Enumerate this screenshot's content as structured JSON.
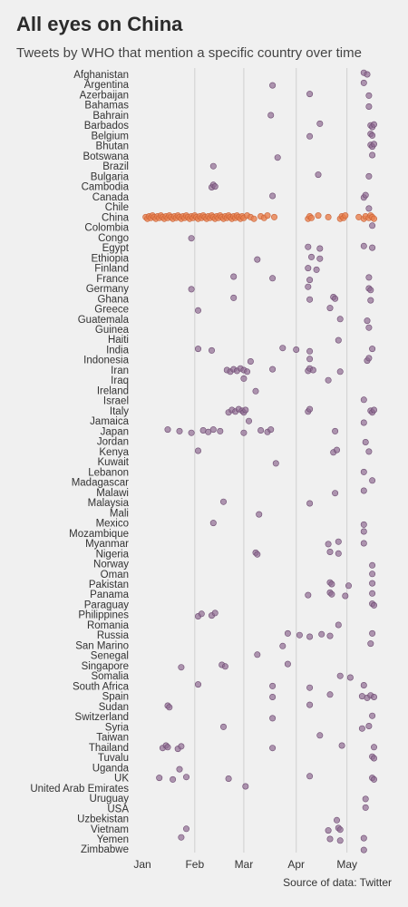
{
  "title": "All eyes on China",
  "subtitle": "Tweets by WHO that mention a specific country over time",
  "source": "Source of data: Twitter",
  "colors": {
    "background": "#f0f0f0",
    "highlight": "#e8804e",
    "default": "#8e6b91",
    "grid": "#d0d0d0"
  },
  "chart_data": {
    "type": "scatter",
    "highlight_country": "China",
    "x_axis_ticks": [
      {
        "label": "Jan",
        "day": 0
      },
      {
        "label": "Feb",
        "day": 31
      },
      {
        "label": "Mar",
        "day": 60
      },
      {
        "label": "Apr",
        "day": 91
      },
      {
        "label": "May",
        "day": 121
      }
    ],
    "xlim_days": [
      0,
      140
    ],
    "grid": "vertical",
    "countries": [
      {
        "name": "Afghanistan",
        "days": [
          131,
          133
        ]
      },
      {
        "name": "Argentina",
        "days": [
          77,
          131
        ]
      },
      {
        "name": "Azerbaijan",
        "days": [
          99,
          134
        ]
      },
      {
        "name": "Bahamas",
        "days": [
          134
        ]
      },
      {
        "name": "Bahrain",
        "days": [
          76
        ]
      },
      {
        "name": "Barbados",
        "days": [
          105,
          135,
          136,
          137
        ]
      },
      {
        "name": "Belgium",
        "days": [
          99,
          135,
          136
        ]
      },
      {
        "name": "Bhutan",
        "days": [
          135,
          136,
          137
        ]
      },
      {
        "name": "Botswana",
        "days": [
          80,
          136
        ]
      },
      {
        "name": "Brazil",
        "days": [
          42
        ]
      },
      {
        "name": "Bulgaria",
        "days": [
          104,
          134
        ]
      },
      {
        "name": "Cambodia",
        "days": [
          41,
          42,
          43
        ]
      },
      {
        "name": "Canada",
        "days": [
          77,
          131,
          132
        ]
      },
      {
        "name": "Chile",
        "days": [
          134
        ]
      },
      {
        "name": "China",
        "days": [
          2,
          3,
          4,
          5,
          6,
          7,
          8,
          9,
          10,
          11,
          12,
          13,
          14,
          15,
          16,
          17,
          18,
          19,
          20,
          21,
          22,
          23,
          24,
          25,
          26,
          27,
          28,
          29,
          30,
          31,
          32,
          33,
          34,
          35,
          36,
          37,
          38,
          39,
          40,
          41,
          42,
          43,
          44,
          45,
          46,
          47,
          48,
          49,
          50,
          51,
          52,
          53,
          54,
          55,
          56,
          57,
          58,
          59,
          60,
          62,
          64,
          66,
          70,
          72,
          74,
          78,
          98,
          99,
          100,
          104,
          110,
          117,
          118,
          119,
          120,
          128,
          131,
          132,
          134,
          135,
          136,
          137
        ]
      },
      {
        "name": "Colombia",
        "days": [
          136
        ]
      },
      {
        "name": "Congo",
        "days": [
          29
        ]
      },
      {
        "name": "Egypt",
        "days": [
          98,
          105,
          131,
          136
        ]
      },
      {
        "name": "Ethiopia",
        "days": [
          68,
          100,
          105
        ]
      },
      {
        "name": "Finland",
        "days": [
          98,
          103
        ]
      },
      {
        "name": "France",
        "days": [
          54,
          77,
          99,
          134
        ]
      },
      {
        "name": "Germany",
        "days": [
          29,
          98,
          134,
          135
        ]
      },
      {
        "name": "Ghana",
        "days": [
          54,
          99,
          113,
          114,
          135
        ]
      },
      {
        "name": "Greece",
        "days": [
          33,
          111
        ]
      },
      {
        "name": "Guatemala",
        "days": [
          117,
          133
        ]
      },
      {
        "name": "Guinea",
        "days": [
          134
        ]
      },
      {
        "name": "Haiti",
        "days": [
          116
        ]
      },
      {
        "name": "India",
        "days": [
          33,
          41,
          83,
          91,
          99,
          136
        ]
      },
      {
        "name": "Indonesia",
        "days": [
          64,
          99,
          133,
          134
        ]
      },
      {
        "name": "Iran",
        "days": [
          50,
          52,
          54,
          56,
          58,
          60,
          62,
          77,
          98,
          99,
          101,
          117
        ]
      },
      {
        "name": "Iraq",
        "days": [
          60,
          110
        ]
      },
      {
        "name": "Ireland",
        "days": [
          67
        ]
      },
      {
        "name": "Israel",
        "days": [
          131
        ]
      },
      {
        "name": "Italy",
        "days": [
          51,
          53,
          55,
          57,
          59,
          60,
          61,
          98,
          99,
          135,
          136,
          137
        ]
      },
      {
        "name": "Jamaica",
        "days": [
          63,
          131
        ]
      },
      {
        "name": "Japan",
        "days": [
          15,
          22,
          29,
          36,
          39,
          42,
          46,
          60,
          70,
          74,
          76,
          114
        ]
      },
      {
        "name": "Jordan",
        "days": [
          132
        ]
      },
      {
        "name": "Kenya",
        "days": [
          33,
          113,
          115,
          134
        ]
      },
      {
        "name": "Kuwait",
        "days": [
          79
        ]
      },
      {
        "name": "Lebanon",
        "days": [
          131
        ]
      },
      {
        "name": "Madagascar",
        "days": [
          136
        ]
      },
      {
        "name": "Malawi",
        "days": [
          114,
          131
        ]
      },
      {
        "name": "Malaysia",
        "days": [
          48,
          99
        ]
      },
      {
        "name": "Mali",
        "days": [
          69
        ]
      },
      {
        "name": "Mexico",
        "days": [
          42,
          131
        ]
      },
      {
        "name": "Mozambique",
        "days": [
          131
        ]
      },
      {
        "name": "Myanmar",
        "days": [
          110,
          116,
          131
        ]
      },
      {
        "name": "Nigeria",
        "days": [
          67,
          68,
          111,
          116
        ]
      },
      {
        "name": "Norway",
        "days": [
          136
        ]
      },
      {
        "name": "Oman",
        "days": [
          136
        ]
      },
      {
        "name": "Pakistan",
        "days": [
          111,
          112,
          122,
          136
        ]
      },
      {
        "name": "Panama",
        "days": [
          98,
          111,
          112,
          120,
          136
        ]
      },
      {
        "name": "Paraguay",
        "days": [
          136,
          137
        ]
      },
      {
        "name": "Philippines",
        "days": [
          33,
          35,
          41,
          43
        ]
      },
      {
        "name": "Romania",
        "days": [
          116
        ]
      },
      {
        "name": "Russia",
        "days": [
          86,
          93,
          99,
          106,
          111,
          136
        ]
      },
      {
        "name": "San Marino",
        "days": [
          83,
          135
        ]
      },
      {
        "name": "Senegal",
        "days": [
          68
        ]
      },
      {
        "name": "Singapore",
        "days": [
          23,
          47,
          49,
          86
        ]
      },
      {
        "name": "Somalia",
        "days": [
          117,
          123
        ]
      },
      {
        "name": "South Africa",
        "days": [
          33,
          77,
          99,
          131
        ]
      },
      {
        "name": "Spain",
        "days": [
          77,
          111,
          130,
          133,
          135,
          137
        ]
      },
      {
        "name": "Sudan",
        "days": [
          15,
          16,
          99
        ]
      },
      {
        "name": "Switzerland",
        "days": [
          77,
          136
        ]
      },
      {
        "name": "Syria",
        "days": [
          48,
          130,
          134
        ]
      },
      {
        "name": "Taiwan",
        "days": [
          105
        ]
      },
      {
        "name": "Thailand",
        "days": [
          12,
          14,
          15,
          21,
          23,
          77,
          118,
          137
        ]
      },
      {
        "name": "Tuvalu",
        "days": [
          136,
          137
        ]
      },
      {
        "name": "Uganda",
        "days": [
          22
        ]
      },
      {
        "name": "UK",
        "days": [
          10,
          18,
          26,
          51,
          99,
          136,
          137
        ]
      },
      {
        "name": "United Arab Emirates",
        "days": [
          61
        ]
      },
      {
        "name": "Uruguay",
        "days": [
          132
        ]
      },
      {
        "name": "USA",
        "days": [
          132
        ]
      },
      {
        "name": "Uzbekistan",
        "days": [
          115
        ]
      },
      {
        "name": "Vietnam",
        "days": [
          26,
          110,
          116,
          117
        ]
      },
      {
        "name": "Yemen",
        "days": [
          23,
          111,
          117,
          131
        ]
      },
      {
        "name": "Zimbabwe",
        "days": [
          131
        ]
      }
    ]
  }
}
